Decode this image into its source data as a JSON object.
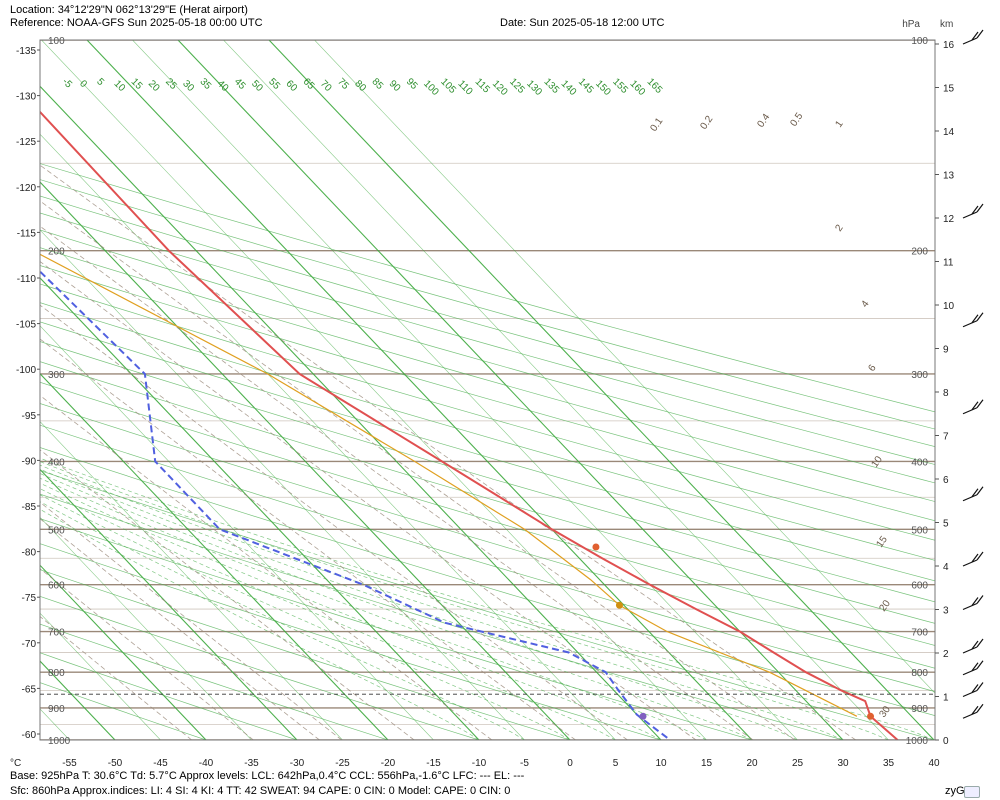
{
  "header": {
    "location": "Location:  34°12'29\"N  062°13'29\"E (Herat airport)",
    "reference": "Reference: NOAA-GFS Sun 2025-05-18 00:00 UTC",
    "date": "Date: Sun 2025-05-18 12:00 UTC"
  },
  "footer": {
    "line1": "Base: 925hPa  T: 30.6°C  Td: 5.7°C     Approx levels:  LCL: 642hPa,0.4°C    CCL: 556hPa,-1.6°C   LFC: ---    EL: ---",
    "line2": "Sfc: 860hPa      Approx.indices:  LI: 4   SI: 4   KI: 4   TT: 42   SWEAT: 94     CAPE: 0  CIN: 0         Model: CAPE: 0  CIN: 0",
    "brand": "zyGrib"
  },
  "colors": {
    "temperature": "#e05050",
    "dewpoint": "#5060e0",
    "parcel": "#e0a020",
    "isotherm": "#3aa83a",
    "isobar": "#9a8878",
    "mixing_ratio": "#9a8a7a"
  },
  "chart_data": {
    "type": "line",
    "x_axis": {
      "unit": "°C",
      "ticks": [
        -55,
        -50,
        -45,
        -40,
        -35,
        -30,
        -25,
        -20,
        -15,
        -10,
        -5,
        0,
        5,
        10,
        15,
        20,
        25,
        30,
        35,
        40
      ]
    },
    "left_axis": {
      "ticks": [
        -135,
        -130,
        -125,
        -120,
        -115,
        -110,
        -105,
        -100,
        -95,
        -90,
        -85,
        -80,
        -75,
        -70,
        -65,
        -60
      ]
    },
    "pressure_axis": {
      "unit": "hPa",
      "levels": [
        100,
        200,
        300,
        400,
        500,
        600,
        700,
        800,
        900,
        1000
      ]
    },
    "height_axis": {
      "unit": "km",
      "ticks": [
        0,
        1,
        2,
        3,
        4,
        5,
        6,
        7,
        8,
        9,
        10,
        11,
        12,
        13,
        14,
        15,
        16
      ]
    },
    "isotherm_labels": [
      "-5",
      "0",
      "5",
      "10",
      "15",
      "20",
      "25",
      "30",
      "35",
      "40",
      "45",
      "50",
      "55",
      "60",
      "65",
      "70",
      "75",
      "80",
      "85",
      "90",
      "95",
      "100",
      "105",
      "110",
      "115",
      "120",
      "125",
      "130",
      "135",
      "140",
      "145",
      "150",
      "155",
      "160",
      "165"
    ],
    "mixing_ratio_labels": [
      "0.1",
      "0.2",
      "0.4",
      "0.5",
      "1",
      "2",
      "4",
      "6",
      "10",
      "15",
      "20",
      "30"
    ],
    "series": [
      {
        "key": "temperature",
        "points": [
          [
            100,
            7.5
          ],
          [
            200,
            7
          ],
          [
            300,
            8.5
          ],
          [
            400,
            15
          ],
          [
            500,
            20
          ],
          [
            550,
            22.5
          ],
          [
            600,
            25
          ],
          [
            650,
            27.5
          ],
          [
            700,
            30
          ],
          [
            750,
            31.5
          ],
          [
            800,
            33
          ],
          [
            850,
            35
          ],
          [
            880,
            36.5
          ],
          [
            925,
            35.5
          ],
          [
            1000,
            36
          ]
        ]
      },
      {
        "key": "dewpoint",
        "points": [
          [
            100,
            -5.5
          ],
          [
            200,
            -9.5
          ],
          [
            300,
            -8.5
          ],
          [
            400,
            -16.5
          ],
          [
            500,
            -16.5
          ],
          [
            600,
            -6.5
          ],
          [
            680,
            -1.5
          ],
          [
            750,
            9
          ],
          [
            800,
            11
          ],
          [
            850,
            10.5
          ],
          [
            920,
            10
          ],
          [
            1000,
            11
          ]
        ]
      },
      {
        "key": "parcel",
        "points": [
          [
            100,
            -30
          ],
          [
            300,
            5
          ],
          [
            400,
            12
          ],
          [
            500,
            17
          ],
          [
            590,
            19
          ],
          [
            642,
            19.5
          ],
          [
            700,
            22
          ],
          [
            800,
            29
          ],
          [
            925,
            34
          ]
        ]
      }
    ],
    "markers": [
      {
        "p": 530,
        "t": 23,
        "series": "temperature"
      },
      {
        "p": 642,
        "t": 19.5,
        "series": "parcel"
      },
      {
        "p": 925,
        "t": 35.5,
        "series": "temperature"
      },
      {
        "p": 925,
        "t": 10.5,
        "series": "dewpoint"
      }
    ],
    "dashed_level_p": 860,
    "wind_barbs": [
      {
        "km": 16
      },
      {
        "km": 12
      },
      {
        "km": 9.5
      },
      {
        "km": 7.5
      },
      {
        "km": 5.5
      },
      {
        "km": 4
      },
      {
        "km": 3
      },
      {
        "km": 2
      },
      {
        "km": 1.5
      },
      {
        "km": 1
      },
      {
        "km": 0.5
      }
    ]
  }
}
